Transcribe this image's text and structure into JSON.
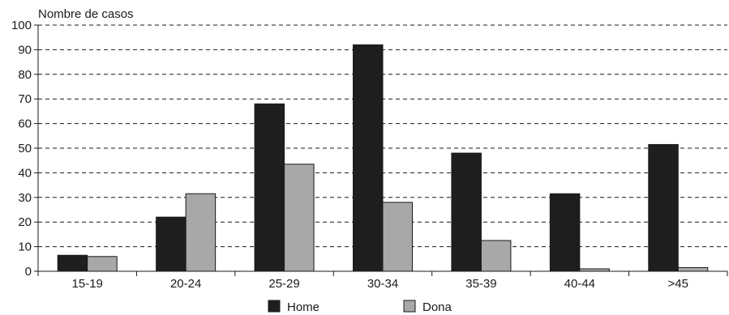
{
  "chart_data": {
    "type": "bar",
    "ylabel": "Nombre de casos",
    "categories": [
      "15-19",
      "20-24",
      "25-29",
      "30-34",
      "35-39",
      "40-44",
      ">45"
    ],
    "series": [
      {
        "name": "Home",
        "values": [
          6.5,
          22,
          68,
          92,
          48,
          31.5,
          51.5
        ],
        "color": "#1e1e1e"
      },
      {
        "name": "Dona",
        "values": [
          6,
          31.5,
          43.5,
          28,
          12.5,
          1,
          1.5
        ],
        "color": "#a8a8a8"
      }
    ],
    "ylim": [
      0,
      100
    ],
    "yticks": [
      0,
      10,
      20,
      30,
      40,
      50,
      60,
      70,
      80,
      90,
      100
    ],
    "grid": true,
    "legend_position": "bottom-center"
  }
}
